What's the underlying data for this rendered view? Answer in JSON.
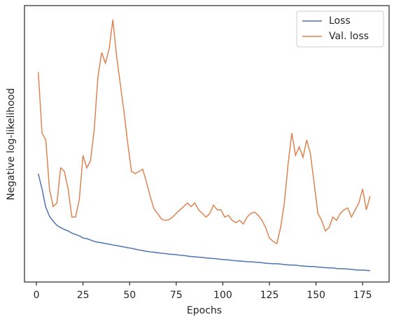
{
  "chart_data": {
    "type": "line",
    "xlabel": "Epochs",
    "ylabel": "Negative log-likelihood",
    "xlim": [
      -6.4,
      189.2
    ],
    "ylim": [
      0,
      100
    ],
    "xticks": [
      0,
      25,
      50,
      75,
      100,
      125,
      150,
      175
    ],
    "legend": "upper right",
    "x": [
      1,
      3,
      5,
      7,
      9,
      11,
      13,
      15,
      17,
      19,
      21,
      23,
      25,
      27,
      29,
      31,
      33,
      35,
      37,
      39,
      41,
      43,
      45,
      47,
      49,
      51,
      53,
      55,
      57,
      59,
      61,
      63,
      65,
      67,
      69,
      71,
      73,
      75,
      77,
      79,
      81,
      83,
      85,
      87,
      89,
      91,
      93,
      95,
      97,
      99,
      101,
      103,
      105,
      107,
      109,
      111,
      113,
      115,
      117,
      119,
      121,
      123,
      125,
      127,
      129,
      131,
      133,
      135,
      137,
      139,
      141,
      143,
      145,
      147,
      149,
      151,
      153,
      155,
      157,
      159,
      161,
      163,
      165,
      167,
      169,
      171,
      173,
      175,
      177,
      179
    ],
    "series": [
      {
        "name": "Loss",
        "color": "#4c72b0",
        "values": [
          39.2,
          33.7,
          27.1,
          23.8,
          22.0,
          20.5,
          19.7,
          19.0,
          18.5,
          17.7,
          17.2,
          16.7,
          15.9,
          15.7,
          15.2,
          14.7,
          14.4,
          14.2,
          13.9,
          13.7,
          13.4,
          13.2,
          12.9,
          12.7,
          12.4,
          12.2,
          11.9,
          11.6,
          11.4,
          11.1,
          10.9,
          10.8,
          10.6,
          10.4,
          10.3,
          10.1,
          10.0,
          9.9,
          9.7,
          9.6,
          9.4,
          9.2,
          9.1,
          9.0,
          8.9,
          8.7,
          8.6,
          8.5,
          8.4,
          8.2,
          8.1,
          8.0,
          7.8,
          7.7,
          7.6,
          7.5,
          7.3,
          7.3,
          7.2,
          7.1,
          7.0,
          6.8,
          6.7,
          6.6,
          6.6,
          6.5,
          6.3,
          6.2,
          6.1,
          6.1,
          5.9,
          5.8,
          5.7,
          5.6,
          5.6,
          5.4,
          5.3,
          5.2,
          5.1,
          5.1,
          4.9,
          4.8,
          4.8,
          4.7,
          4.6,
          4.4,
          4.3,
          4.3,
          4.2,
          4.1
        ]
      },
      {
        "name": "Val. loss",
        "color": "#dd8452",
        "values": [
          75.9,
          53.9,
          51.4,
          33.7,
          27.3,
          28.6,
          41.3,
          40.0,
          33.7,
          23.5,
          23.5,
          29.9,
          45.8,
          41.3,
          43.8,
          55.2,
          74.2,
          83.0,
          79.2,
          84.3,
          94.9,
          81.8,
          71.6,
          61.5,
          50.1,
          40.0,
          39.2,
          40.0,
          40.8,
          36.2,
          31.1,
          26.6,
          24.8,
          22.8,
          22.3,
          22.5,
          23.5,
          24.8,
          26.1,
          27.3,
          28.6,
          27.3,
          28.6,
          26.1,
          24.8,
          23.5,
          24.8,
          27.8,
          26.1,
          26.1,
          23.5,
          24.1,
          22.3,
          21.5,
          22.3,
          21.0,
          23.5,
          24.8,
          25.3,
          24.1,
          22.3,
          19.7,
          15.9,
          14.7,
          13.9,
          19.7,
          28.6,
          42.5,
          53.9,
          45.8,
          48.9,
          45.1,
          51.4,
          46.3,
          35.7,
          24.8,
          22.3,
          18.5,
          19.7,
          23.5,
          22.3,
          24.8,
          26.1,
          26.8,
          23.5,
          26.1,
          28.6,
          33.7,
          26.1,
          31.1
        ]
      }
    ]
  }
}
